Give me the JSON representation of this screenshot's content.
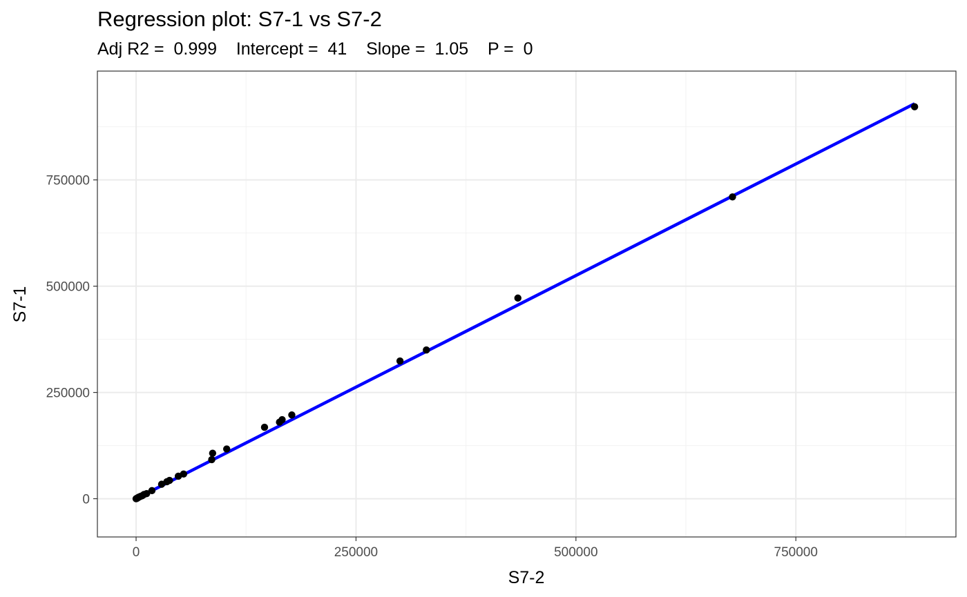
{
  "chart_data": {
    "type": "scatter",
    "title": "Regression plot: S7-1 vs S7-2",
    "subtitle": "Adj R2 =  0.999    Intercept =  41    Slope =  1.05    P =  0",
    "xlabel": "S7-2",
    "ylabel": "S7-1",
    "xlim": [
      -44000,
      932000
    ],
    "ylim": [
      -90000,
      1006000
    ],
    "x_ticks": [
      0,
      250000,
      500000,
      750000
    ],
    "x_tick_labels": [
      "0",
      "250000",
      "500000",
      "750000"
    ],
    "y_ticks": [
      0,
      250000,
      500000,
      750000
    ],
    "y_tick_labels": [
      "0",
      "250000",
      "500000",
      "750000"
    ],
    "grid": true,
    "points": {
      "color": "#000000",
      "x": [
        0,
        500,
        1000,
        1500,
        2500,
        3500,
        5000,
        7000,
        9000,
        12000,
        18000,
        29000,
        35000,
        38000,
        48000,
        54000,
        86000,
        87000,
        103000,
        146000,
        163000,
        166000,
        177000,
        300000,
        330000,
        434000,
        678000,
        885000
      ],
      "y": [
        0,
        500,
        1000,
        1500,
        3000,
        4000,
        5500,
        7000,
        10000,
        12000,
        19000,
        34000,
        40000,
        43000,
        53000,
        58000,
        92000,
        107000,
        117000,
        168000,
        180000,
        186000,
        197000,
        324000,
        350000,
        472000,
        710000,
        922000
      ]
    },
    "regression_line": {
      "color": "#0000ff",
      "intercept": 41,
      "slope": 1.05,
      "x_range": [
        0,
        885000
      ]
    }
  }
}
